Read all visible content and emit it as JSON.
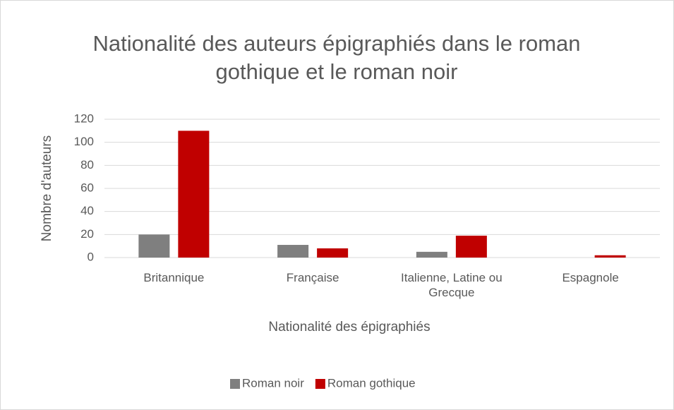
{
  "chart_data": {
    "type": "bar",
    "title": "Nationalité des auteurs épigraphiés dans le roman gothique et le roman noir",
    "categories": [
      "Britannique",
      "Française",
      "Italienne, Latine ou Grecque",
      "Espagnole"
    ],
    "series": [
      {
        "name": "Roman noir",
        "color": "#7f7f7f",
        "values": [
          20,
          11,
          5,
          0
        ]
      },
      {
        "name": "Roman gothique",
        "color": "#c00000",
        "values": [
          110,
          8,
          19,
          2
        ]
      }
    ],
    "x_label": "Nationalité des épigraphiés",
    "y_label": "Nombre d'auteurs",
    "ylim": [
      0,
      120
    ],
    "yticks": [
      0,
      20,
      40,
      60,
      80,
      100,
      120
    ],
    "grid": true,
    "legend": "bottom"
  }
}
